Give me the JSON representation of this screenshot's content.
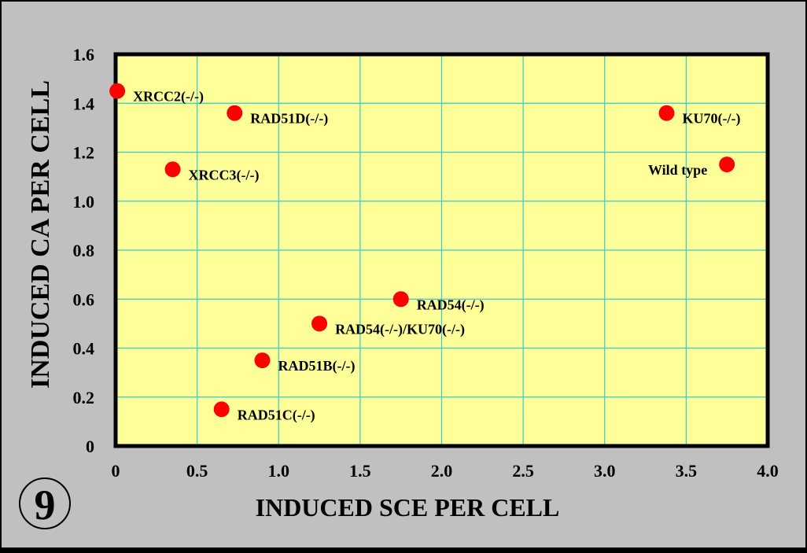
{
  "chart_data": {
    "type": "scatter",
    "xlabel": "INDUCED SCE PER CELL",
    "ylabel": "INDUCED CA PER CELL",
    "xlim": [
      0,
      4.0
    ],
    "ylim": [
      0,
      1.6
    ],
    "x_ticks": [
      "0",
      "0.5",
      "1.0",
      "1.5",
      "2.0",
      "2.5",
      "3.0",
      "3.5",
      "4.0"
    ],
    "y_ticks": [
      "0",
      "0.2",
      "0.4",
      "0.6",
      "0.8",
      "1.0",
      "1.2",
      "1.4",
      "1.6"
    ],
    "grid": true,
    "points": [
      {
        "label": "XRCC2(-/-)",
        "x": 0.01,
        "y": 1.45
      },
      {
        "label": "RAD51D(-/-)",
        "x": 0.73,
        "y": 1.36
      },
      {
        "label": "XRCC3(-/-)",
        "x": 0.35,
        "y": 1.13
      },
      {
        "label": "KU70(-/-)",
        "x": 3.38,
        "y": 1.36
      },
      {
        "label": "Wild type",
        "x": 3.75,
        "y": 1.15
      },
      {
        "label": "RAD54(-/-)",
        "x": 1.75,
        "y": 0.6
      },
      {
        "label": "RAD54(-/-)/KU70(-/-)",
        "x": 1.25,
        "y": 0.5
      },
      {
        "label": "RAD51B(-/-)",
        "x": 0.9,
        "y": 0.35
      },
      {
        "label": "RAD51C(-/-)",
        "x": 0.65,
        "y": 0.15
      }
    ]
  },
  "figure_number": "9",
  "colors": {
    "outer_background": "#c0c0c0",
    "plot_background": "#ffff99",
    "grid": "#33cccc",
    "marker": "#ff0000",
    "text": "#000000"
  }
}
